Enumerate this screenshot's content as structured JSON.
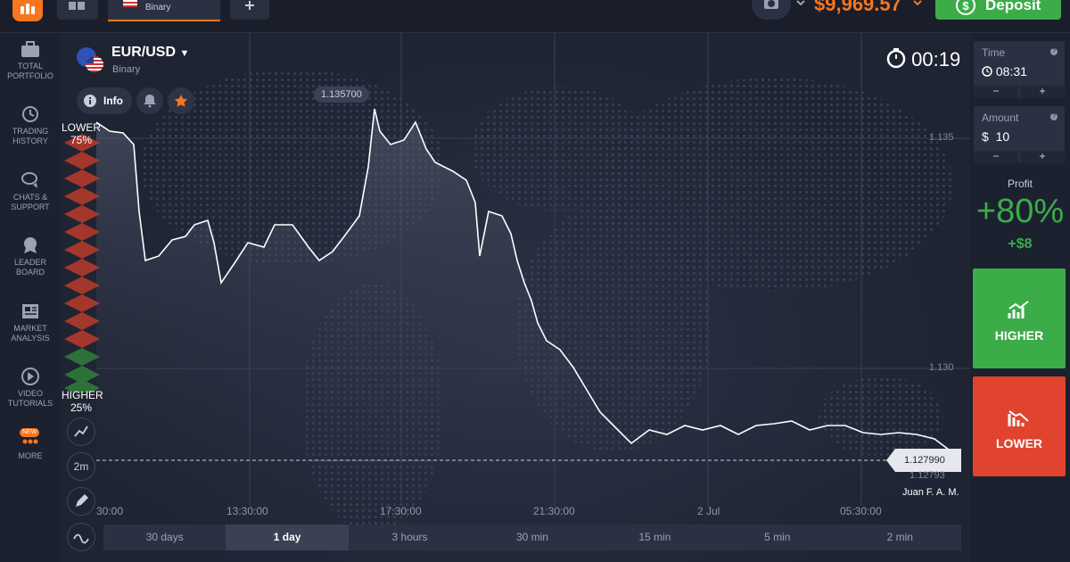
{
  "topbar": {
    "tab_label": "Binary",
    "balance": "$9,969.57",
    "deposit_label": "Deposit"
  },
  "sidebar": {
    "items": [
      {
        "label": "TOTAL PORTFOLIO",
        "icon": "briefcase-icon"
      },
      {
        "label": "TRADING HISTORY",
        "icon": "history-icon"
      },
      {
        "label": "CHATS & SUPPORT",
        "icon": "chat-icon"
      },
      {
        "label": "LEADER BOARD",
        "icon": "trophy-icon"
      },
      {
        "label": "MARKET ANALYSIS",
        "icon": "newspaper-icon"
      },
      {
        "label": "VIDEO TUTORIALS",
        "icon": "play-icon"
      },
      {
        "label": "MORE",
        "icon": "more-icon",
        "badge": "NEW"
      }
    ]
  },
  "asset": {
    "name": "EUR/USD",
    "type": "Binary",
    "info_label": "Info"
  },
  "timer": "00:19",
  "sentiment": {
    "lower_label": "LOWER",
    "lower_pct": "75%",
    "higher_label": "HIGHER",
    "higher_pct": "25%"
  },
  "tools": {
    "timeframe": "2m"
  },
  "chart": {
    "high_label": "1.135700",
    "current_price": "1.127990",
    "current_price_sub": "1.12793",
    "trader": "Juan F. A. M.",
    "y_ticks": [
      "1.135",
      "1.130"
    ],
    "x_ticks": [
      "13:30:00",
      "17:30:00",
      "21:30:00",
      "2 Jul",
      "05:30:00"
    ],
    "partial_x_tick": "30:00"
  },
  "chart_data": {
    "type": "area",
    "title": "EUR/USD",
    "y_ticks": [
      1.135,
      1.13
    ],
    "current": 1.12799,
    "high": 1.1357,
    "x": [
      "13:30:00",
      "17:30:00",
      "21:30:00",
      "2 Jul",
      "05:30:00"
    ]
  },
  "right": {
    "time_label": "Time",
    "time_value": "08:31",
    "amount_label": "Amount",
    "amount_value": "$  10",
    "profit_label": "Profit",
    "profit_pct": "+80%",
    "profit_amount": "+$8",
    "higher_label": "HIGHER",
    "lower_label": "LOWER",
    "minus": "−",
    "plus": "+"
  },
  "periods": [
    {
      "label": "30 days"
    },
    {
      "label": "1 day",
      "active": true
    },
    {
      "label": "3 hours"
    },
    {
      "label": "30 min"
    },
    {
      "label": "15 min"
    },
    {
      "label": "5 min"
    },
    {
      "label": "2 min"
    }
  ],
  "colors": {
    "accent": "#f7761e",
    "up": "#3cac49",
    "down": "#e0432e"
  }
}
